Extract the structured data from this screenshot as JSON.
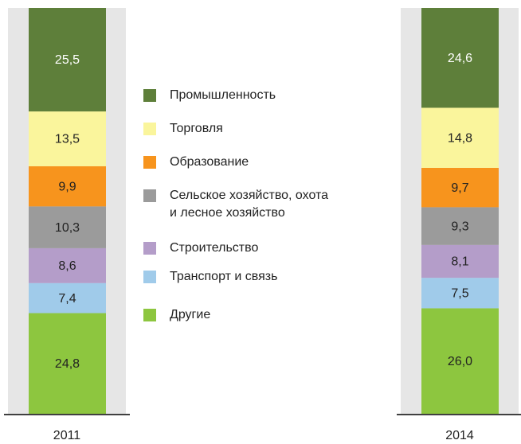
{
  "chart_data": {
    "type": "stacked_bar",
    "categories": [
      "2011",
      "2014"
    ],
    "ylim": [
      0,
      100
    ],
    "series": [
      {
        "name": "Промышленность",
        "color": "#5e7f3a",
        "values": [
          25.5,
          24.6
        ],
        "value_labels": [
          "25,5",
          "24,6"
        ]
      },
      {
        "name": "Торговля",
        "color": "#faf59c",
        "values": [
          13.5,
          14.8
        ],
        "value_labels": [
          "13,5",
          "14,8"
        ]
      },
      {
        "name": "Образование",
        "color": "#f7941d",
        "values": [
          9.9,
          9.7
        ],
        "value_labels": [
          "9,9",
          "9,7"
        ]
      },
      {
        "name": "Сельское хозяйство, охота\nи лесное хозяйство",
        "color": "#9b9b9b",
        "values": [
          10.3,
          9.3
        ],
        "value_labels": [
          "10,3",
          "9,3"
        ]
      },
      {
        "name": "Строительство",
        "color": "#b49dc9",
        "values": [
          8.6,
          8.1
        ],
        "value_labels": [
          "8,6",
          "8,1"
        ]
      },
      {
        "name": "Транспорт и связь",
        "color": "#a0cbea",
        "values": [
          7.4,
          7.5
        ],
        "value_labels": [
          "7,4",
          "7,5"
        ]
      },
      {
        "name": "Другие",
        "color": "#8dc63f",
        "values": [
          24.8,
          26.0
        ],
        "value_labels": [
          "24,8",
          "26,0"
        ]
      }
    ]
  }
}
